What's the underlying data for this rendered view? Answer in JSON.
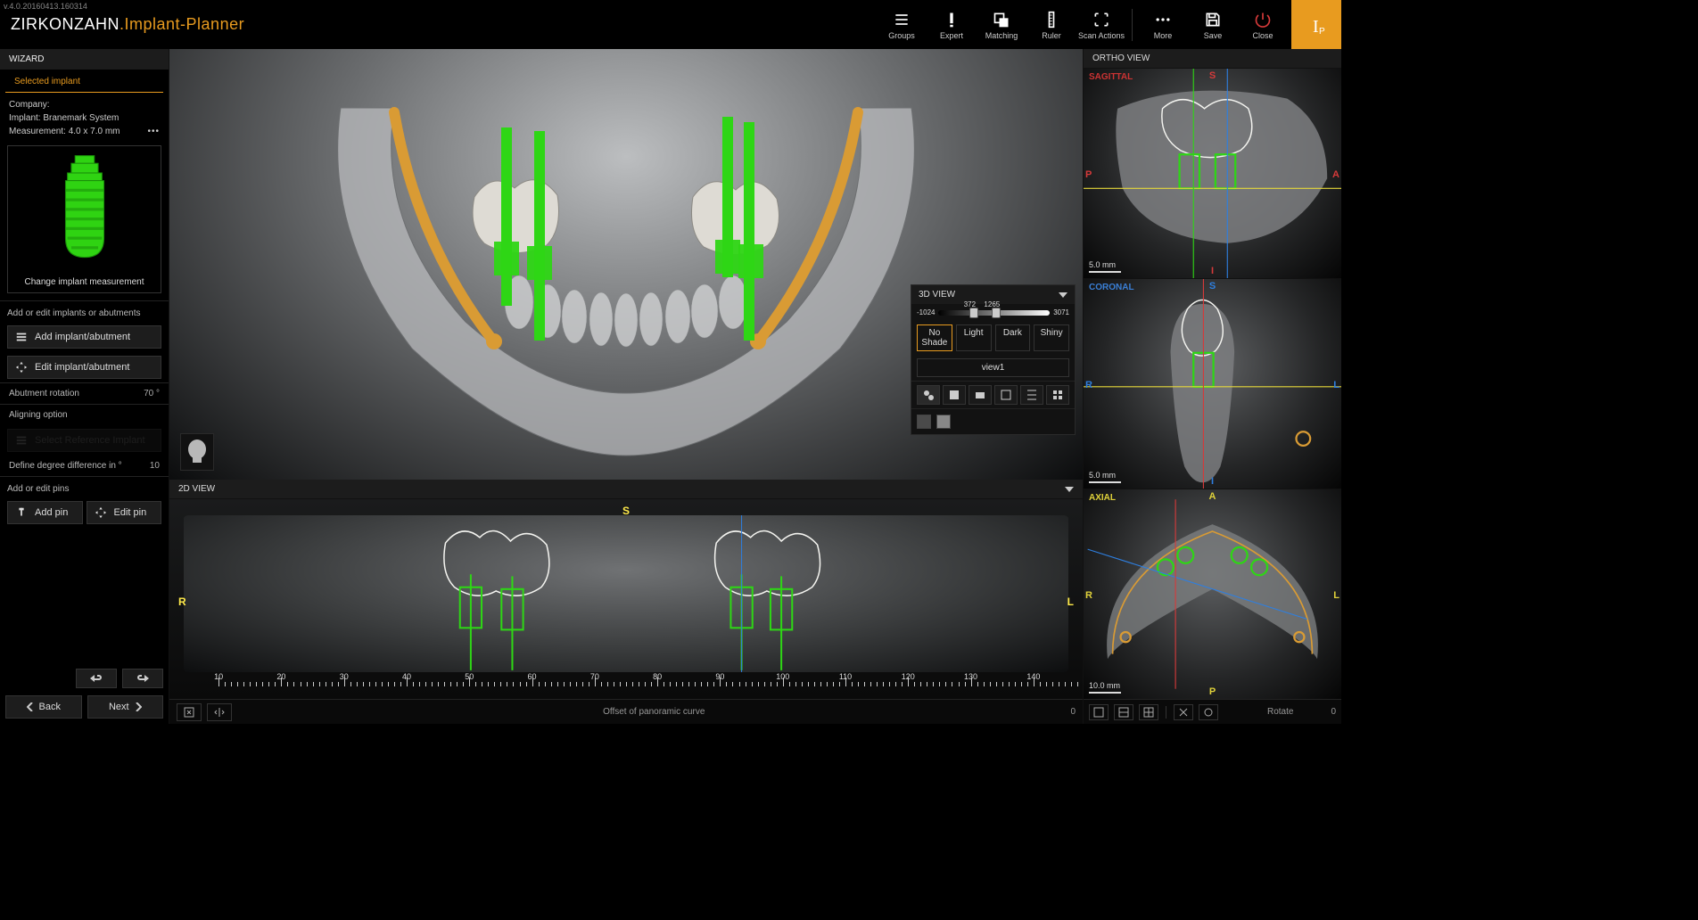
{
  "version": "v.4.0.20160413.160314",
  "brand": {
    "prefix": "ZIRKONZAHN",
    "dot": ".",
    "suffix": "Implant-Planner"
  },
  "header": {
    "items": [
      {
        "id": "groups",
        "label": "Groups"
      },
      {
        "id": "expert",
        "label": "Expert"
      },
      {
        "id": "matching",
        "label": "Matching"
      },
      {
        "id": "ruler",
        "label": "Ruler"
      },
      {
        "id": "scanactions",
        "label": "Scan Actions"
      }
    ],
    "right": [
      {
        "id": "more",
        "label": "More"
      },
      {
        "id": "save",
        "label": "Save"
      },
      {
        "id": "close",
        "label": "Close"
      }
    ],
    "orange_label": "Iₚ"
  },
  "wizard": {
    "title": "WIZARD",
    "selected_heading": "Selected implant",
    "company_label": "Company:",
    "implant_label": "Implant: Branemark System",
    "measurement_label": "Measurement:  4.0 x 7.0 mm",
    "change_label": "Change implant measurement",
    "implant_color": "#2fd312",
    "section_add_edit": "Add or edit implants or abutments",
    "btn_add_implant": "Add implant/abutment",
    "btn_edit_implant": "Edit implant/abutment",
    "abutment_rotation_label": "Abutment rotation",
    "abutment_rotation_value": "70 °",
    "aligning_label": "Aligning option",
    "reference_placeholder": "Select Reference Implant",
    "degree_label": "Define degree difference in °",
    "degree_value": "10",
    "pins_label": "Add or edit pins",
    "btn_add_pin": "Add pin",
    "btn_edit_pin": "Edit pin",
    "back": "Back",
    "next": "Next"
  },
  "ctrl3d": {
    "title": "3D VIEW",
    "min": "-1024",
    "mid1": "372",
    "mid2": "1265",
    "max": "3071",
    "shade": [
      "No Shade",
      "Light",
      "Dark",
      "Shiny"
    ],
    "viewname": "view1",
    "swatches": [
      "#4a4a4a",
      "#888888",
      "transparent",
      "transparent",
      "transparent"
    ]
  },
  "view2d": {
    "title": "2D VIEW",
    "orient": {
      "S": "S",
      "R": "R",
      "L": "L"
    },
    "ruler_ticks": [
      10,
      20,
      30,
      40,
      50,
      60,
      70,
      80,
      90,
      100,
      110,
      120,
      130,
      140
    ],
    "offset_label": "Offset of panoramic curve",
    "offset_value": "0"
  },
  "ortho": {
    "title": "ORTHO VIEW",
    "sagittal": {
      "label": "SAGITTAL",
      "S": "S",
      "I": "I",
      "P": "P",
      "A": "A",
      "scale": "5.0 mm"
    },
    "coronal": {
      "label": "CORONAL",
      "S": "S",
      "I": "I",
      "R": "R",
      "L": "L",
      "scale": "5.0 mm"
    },
    "axial": {
      "label": "AXIAL",
      "A": "A",
      "P": "P",
      "R": "R",
      "L": "L",
      "scale": "10.0 mm"
    },
    "rotate_label": "Rotate",
    "rotate_value": "0"
  },
  "scene": {
    "implant_green": "#2ed615",
    "nerve_color": "#d99b34",
    "tooth_color": "#d8d7d2",
    "crosshair_yellow": "#e6d83a",
    "crosshair_blue": "#2e7fe0",
    "crosshair_red": "#d63a3a",
    "outline_white": "#f4f4f0"
  }
}
